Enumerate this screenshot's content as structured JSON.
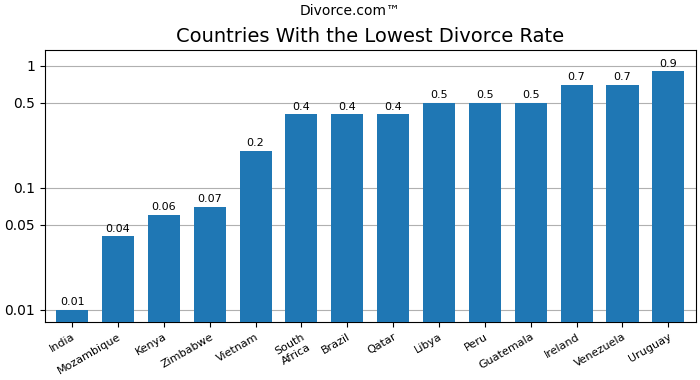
{
  "chart_data": {
    "type": "bar",
    "title": "Countries With the Lowest Divorce Rate",
    "annotations": [
      "Divorce.com™"
    ],
    "categories": [
      "India",
      "Mozambique",
      "Kenya",
      "Zimbabwe",
      "Vietnam",
      "South\nAfrica",
      "Brazil",
      "Qatar",
      "Libya",
      "Peru",
      "Guatemala",
      "Ireland",
      "Venezuela",
      "Uruguay"
    ],
    "values": [
      0.01,
      0.04,
      0.06,
      0.07,
      0.2,
      0.4,
      0.4,
      0.4,
      0.5,
      0.5,
      0.5,
      0.7,
      0.7,
      0.9
    ],
    "log": "y",
    "ylim": [
      0.008,
      1.35
    ],
    "yticks": [
      0.01,
      0.05,
      0.1,
      0.5,
      1
    ],
    "grid": true,
    "data_labels": true
  }
}
